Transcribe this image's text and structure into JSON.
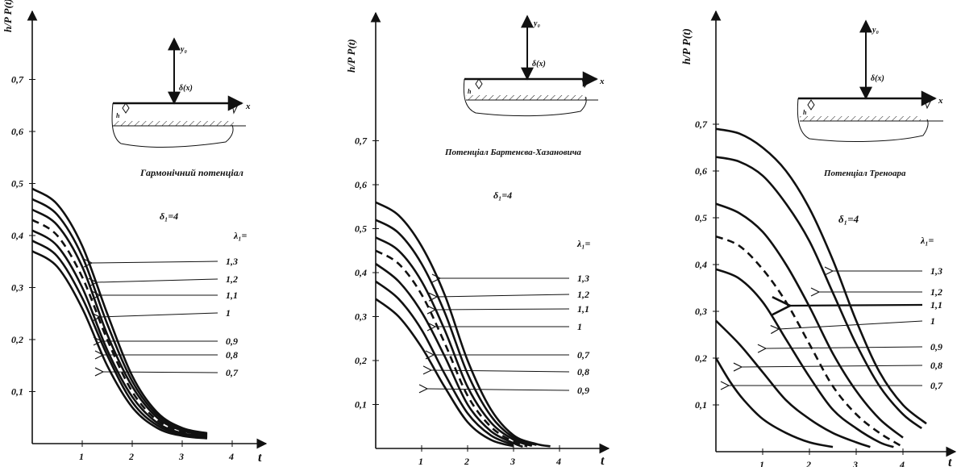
{
  "chart_data": [
    {
      "type": "line",
      "title": "Гармонічний потенціал",
      "ylabel": "h/P P(t)",
      "xlabel": "t",
      "delta_label": "δ₁=4",
      "lambda_label": "λ₁=",
      "xlim": [
        0,
        4.4
      ],
      "ylim": [
        0,
        0.83
      ],
      "x_ticks": [
        "1",
        "2",
        "3",
        "4"
      ],
      "y_ticks": [
        "0,1",
        "0,2",
        "0,3",
        "0,4",
        "0,5",
        "0,6",
        "0,7"
      ],
      "series": [
        {
          "name": "1,3",
          "dashed": false,
          "points": [
            [
              0,
              0.49
            ],
            [
              0.5,
              0.46
            ],
            [
              1,
              0.38
            ],
            [
              1.5,
              0.25
            ],
            [
              2,
              0.13
            ],
            [
              2.5,
              0.06
            ],
            [
              3,
              0.03
            ],
            [
              3.5,
              0.02
            ]
          ]
        },
        {
          "name": "1,2",
          "dashed": false,
          "points": [
            [
              0,
              0.47
            ],
            [
              0.5,
              0.44
            ],
            [
              1,
              0.36
            ],
            [
              1.5,
              0.23
            ],
            [
              2,
              0.12
            ],
            [
              2.5,
              0.055
            ],
            [
              3,
              0.028
            ],
            [
              3.5,
              0.018
            ]
          ]
        },
        {
          "name": "1,1",
          "dashed": false,
          "points": [
            [
              0,
              0.45
            ],
            [
              0.5,
              0.42
            ],
            [
              1,
              0.34
            ],
            [
              1.5,
              0.21
            ],
            [
              2,
              0.11
            ],
            [
              2.5,
              0.05
            ],
            [
              3,
              0.025
            ],
            [
              3.5,
              0.016
            ]
          ]
        },
        {
          "name": "1",
          "dashed": true,
          "points": [
            [
              0,
              0.43
            ],
            [
              0.5,
              0.4
            ],
            [
              1,
              0.32
            ],
            [
              1.5,
              0.2
            ],
            [
              2,
              0.1
            ],
            [
              2.5,
              0.045
            ],
            [
              3,
              0.023
            ],
            [
              3.5,
              0.015
            ]
          ]
        },
        {
          "name": "0,9",
          "dashed": false,
          "points": [
            [
              0,
              0.41
            ],
            [
              0.5,
              0.38
            ],
            [
              1,
              0.3
            ],
            [
              1.5,
              0.18
            ],
            [
              2,
              0.09
            ],
            [
              2.5,
              0.04
            ],
            [
              3,
              0.02
            ],
            [
              3.5,
              0.013
            ]
          ]
        },
        {
          "name": "0,8",
          "dashed": false,
          "points": [
            [
              0,
              0.39
            ],
            [
              0.5,
              0.36
            ],
            [
              1,
              0.28
            ],
            [
              1.5,
              0.17
            ],
            [
              2,
              0.08
            ],
            [
              2.5,
              0.035
            ],
            [
              3,
              0.018
            ],
            [
              3.5,
              0.012
            ]
          ]
        },
        {
          "name": "0,7",
          "dashed": false,
          "points": [
            [
              0,
              0.37
            ],
            [
              0.5,
              0.34
            ],
            [
              1,
              0.26
            ],
            [
              1.5,
              0.15
            ],
            [
              2,
              0.07
            ],
            [
              2.5,
              0.03
            ],
            [
              3,
              0.015
            ],
            [
              3.5,
              0.01
            ]
          ]
        }
      ]
    },
    {
      "type": "line",
      "title": "Потенціал Бартенєва-Хазановича",
      "ylabel": "h/P P(t)",
      "xlabel": "t",
      "delta_label": "δ₁=4",
      "lambda_label": "λ₁=",
      "xlim": [
        0,
        4.4
      ],
      "ylim": [
        0,
        0.83
      ],
      "x_ticks": [
        "1",
        "2",
        "3",
        "4"
      ],
      "y_ticks": [
        "0,1",
        "0,2",
        "0,3",
        "0,4",
        "0,5",
        "0,6",
        "0,7"
      ],
      "series": [
        {
          "name": "1,3",
          "dashed": false,
          "points": [
            [
              0,
              0.56
            ],
            [
              0.5,
              0.53
            ],
            [
              1,
              0.46
            ],
            [
              1.5,
              0.35
            ],
            [
              2,
              0.2
            ],
            [
              2.5,
              0.09
            ],
            [
              3,
              0.03
            ],
            [
              3.5,
              0.01
            ],
            [
              3.8,
              0.005
            ]
          ]
        },
        {
          "name": "1,2",
          "dashed": false,
          "points": [
            [
              0,
              0.52
            ],
            [
              0.5,
              0.49
            ],
            [
              1,
              0.42
            ],
            [
              1.5,
              0.31
            ],
            [
              2,
              0.17
            ],
            [
              2.5,
              0.075
            ],
            [
              3,
              0.025
            ],
            [
              3.5,
              0.008
            ]
          ]
        },
        {
          "name": "1,1",
          "dashed": false,
          "points": [
            [
              0,
              0.48
            ],
            [
              0.5,
              0.45
            ],
            [
              1,
              0.38
            ],
            [
              1.5,
              0.27
            ],
            [
              2,
              0.14
            ],
            [
              2.5,
              0.06
            ],
            [
              3,
              0.02
            ],
            [
              3.4,
              0.006
            ]
          ]
        },
        {
          "name": "1",
          "dashed": true,
          "points": [
            [
              0,
              0.45
            ],
            [
              0.5,
              0.42
            ],
            [
              1,
              0.35
            ],
            [
              1.5,
              0.24
            ],
            [
              2,
              0.12
            ],
            [
              2.5,
              0.05
            ],
            [
              3,
              0.015
            ],
            [
              3.3,
              0.005
            ]
          ]
        },
        {
          "name": "0,7",
          "dashed": false,
          "points": [
            [
              0,
              0.42
            ],
            [
              0.5,
              0.38
            ],
            [
              1,
              0.31
            ],
            [
              1.5,
              0.21
            ],
            [
              2,
              0.1
            ],
            [
              2.5,
              0.04
            ],
            [
              3,
              0.012
            ],
            [
              3.2,
              0.004
            ]
          ]
        },
        {
          "name": "0,8",
          "dashed": false,
          "points": [
            [
              0,
              0.38
            ],
            [
              0.5,
              0.34
            ],
            [
              1,
              0.27
            ],
            [
              1.5,
              0.17
            ],
            [
              2,
              0.08
            ],
            [
              2.5,
              0.03
            ],
            [
              3,
              0.008
            ]
          ]
        },
        {
          "name": "0,9",
          "dashed": false,
          "points": [
            [
              0,
              0.34
            ],
            [
              0.5,
              0.3
            ],
            [
              1,
              0.23
            ],
            [
              1.5,
              0.14
            ],
            [
              2,
              0.06
            ],
            [
              2.5,
              0.02
            ],
            [
              3,
              0.005
            ]
          ]
        }
      ]
    },
    {
      "type": "line",
      "title": "Потенціал Треноара",
      "ylabel": "h/P P(t)",
      "xlabel": "t",
      "delta_label": "δ₁=4",
      "lambda_label": "λ₁=",
      "xlim": [
        0,
        4.9
      ],
      "ylim": [
        0,
        0.78
      ],
      "x_ticks": [
        "1",
        "2",
        "3",
        "4"
      ],
      "y_ticks": [
        "0,1",
        "0,2",
        "0,3",
        "0,4",
        "0,5",
        "0,6",
        "0,7"
      ],
      "series": [
        {
          "name": "1,3",
          "dashed": false,
          "points": [
            [
              0,
              0.69
            ],
            [
              0.5,
              0.68
            ],
            [
              1,
              0.65
            ],
            [
              1.5,
              0.6
            ],
            [
              2,
              0.52
            ],
            [
              2.5,
              0.41
            ],
            [
              3,
              0.28
            ],
            [
              3.5,
              0.17
            ],
            [
              4,
              0.1
            ],
            [
              4.5,
              0.06
            ]
          ]
        },
        {
          "name": "1,2",
          "dashed": false,
          "points": [
            [
              0,
              0.63
            ],
            [
              0.5,
              0.62
            ],
            [
              1,
              0.59
            ],
            [
              1.5,
              0.53
            ],
            [
              2,
              0.45
            ],
            [
              2.5,
              0.34
            ],
            [
              3,
              0.23
            ],
            [
              3.5,
              0.14
            ],
            [
              4,
              0.08
            ],
            [
              4.4,
              0.05
            ]
          ]
        },
        {
          "name": "1,1",
          "dashed": false,
          "points": [
            [
              0,
              0.53
            ],
            [
              0.5,
              0.51
            ],
            [
              1,
              0.47
            ],
            [
              1.5,
              0.4
            ],
            [
              2,
              0.31
            ],
            [
              2.5,
              0.21
            ],
            [
              3,
              0.13
            ],
            [
              3.5,
              0.07
            ],
            [
              4,
              0.03
            ]
          ]
        },
        {
          "name": "1",
          "dashed": true,
          "points": [
            [
              0,
              0.46
            ],
            [
              0.5,
              0.44
            ],
            [
              1,
              0.39
            ],
            [
              1.5,
              0.32
            ],
            [
              2,
              0.23
            ],
            [
              2.5,
              0.14
            ],
            [
              3,
              0.08
            ],
            [
              3.5,
              0.04
            ],
            [
              4,
              0.01
            ]
          ]
        },
        {
          "name": "0,9",
          "dashed": false,
          "points": [
            [
              0,
              0.39
            ],
            [
              0.5,
              0.37
            ],
            [
              1,
              0.32
            ],
            [
              1.5,
              0.24
            ],
            [
              2,
              0.16
            ],
            [
              2.5,
              0.09
            ],
            [
              3,
              0.05
            ],
            [
              3.5,
              0.02
            ],
            [
              3.8,
              0.01
            ]
          ]
        },
        {
          "name": "0,8",
          "dashed": false,
          "points": [
            [
              0,
              0.28
            ],
            [
              0.5,
              0.23
            ],
            [
              1,
              0.17
            ],
            [
              1.5,
              0.11
            ],
            [
              2,
              0.07
            ],
            [
              2.5,
              0.04
            ],
            [
              3,
              0.02
            ],
            [
              3.3,
              0.01
            ]
          ]
        },
        {
          "name": "0,7",
          "dashed": false,
          "points": [
            [
              0,
              0.2
            ],
            [
              0.3,
              0.15
            ],
            [
              0.6,
              0.11
            ],
            [
              1,
              0.07
            ],
            [
              1.5,
              0.04
            ],
            [
              2,
              0.02
            ],
            [
              2.5,
              0.01
            ]
          ]
        }
      ]
    }
  ],
  "schematic": {
    "x_label": "x",
    "y_label": "y₀",
    "force_label": "δ(x)",
    "h_label": "h"
  }
}
